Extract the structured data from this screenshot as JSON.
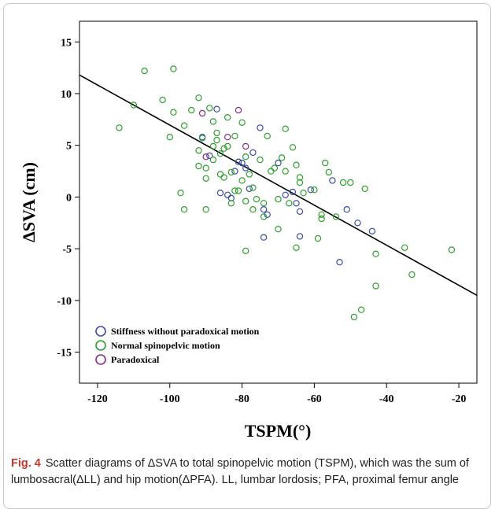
{
  "figure": {
    "caption_label": "Fig. 4",
    "caption_text": "Scatter diagrams of ΔSVA to total spinopelvic motion (TSPM), which was the sum of lumbosacral(ΔLL) and hip motion(ΔPFA). LL, lumbar lordosis; PFA, proximal femur angle"
  },
  "chart_data": {
    "type": "scatter",
    "xlabel": "TSPM(°)",
    "ylabel": "ΔSVA (cm)",
    "xlim": [
      -125,
      -15
    ],
    "ylim": [
      -18,
      17
    ],
    "x_ticks": [
      -120,
      -100,
      -80,
      -60,
      -40,
      -20
    ],
    "y_ticks": [
      15,
      10,
      5,
      0,
      -5,
      -10,
      -15
    ],
    "grid": false,
    "legend_position": "bottom-left",
    "fit_line": {
      "x": [
        -125,
        -15
      ],
      "y": [
        11.8,
        -9.5
      ]
    },
    "series": [
      {
        "name": "Stiffness without paradoxical motion",
        "color": "#3a4aa8",
        "points": [
          [
            -91,
            5.8
          ],
          [
            -89,
            4.0
          ],
          [
            -87,
            8.5
          ],
          [
            -86,
            0.4
          ],
          [
            -84,
            0.2
          ],
          [
            -83,
            -0.1
          ],
          [
            -82,
            2.5
          ],
          [
            -81,
            3.4
          ],
          [
            -80,
            3.3
          ],
          [
            -79,
            2.8
          ],
          [
            -78,
            0.8
          ],
          [
            -77,
            4.3
          ],
          [
            -75,
            6.7
          ],
          [
            -74,
            -1.2
          ],
          [
            -74,
            -3.9
          ],
          [
            -73,
            -1.7
          ],
          [
            -70,
            3.3
          ],
          [
            -68,
            0.2
          ],
          [
            -66,
            0.5
          ],
          [
            -65,
            -0.6
          ],
          [
            -64,
            -1.4
          ],
          [
            -64,
            -3.8
          ],
          [
            -61,
            0.7
          ],
          [
            -55,
            1.6
          ],
          [
            -53,
            -6.3
          ],
          [
            -51,
            -1.2
          ],
          [
            -48,
            -2.5
          ],
          [
            -44,
            -3.3
          ]
        ]
      },
      {
        "name": "Normal spinopelvic motion",
        "color": "#2ea02e",
        "points": [
          [
            -114,
            6.7
          ],
          [
            -110,
            8.9
          ],
          [
            -107,
            12.2
          ],
          [
            -102,
            9.4
          ],
          [
            -100,
            5.8
          ],
          [
            -99,
            12.4
          ],
          [
            -99,
            8.2
          ],
          [
            -97,
            0.4
          ],
          [
            -96,
            6.9
          ],
          [
            -94,
            8.4
          ],
          [
            -92,
            9.6
          ],
          [
            -92,
            4.5
          ],
          [
            -92,
            3.0
          ],
          [
            -91,
            5.7
          ],
          [
            -90,
            2.8
          ],
          [
            -90,
            1.8
          ],
          [
            -89,
            8.6
          ],
          [
            -88,
            7.3
          ],
          [
            -88,
            4.9
          ],
          [
            -88,
            3.6
          ],
          [
            -87,
            6.2
          ],
          [
            -87,
            5.5
          ],
          [
            -86,
            4.2
          ],
          [
            -86,
            2.2
          ],
          [
            -85,
            4.7
          ],
          [
            -85,
            1.9
          ],
          [
            -84,
            7.7
          ],
          [
            -84,
            4.9
          ],
          [
            -83,
            -0.6
          ],
          [
            -83,
            2.4
          ],
          [
            -82,
            5.9
          ],
          [
            -81,
            0.6
          ],
          [
            -80,
            7.2
          ],
          [
            -80,
            1.6
          ],
          [
            -79,
            -5.2
          ],
          [
            -79,
            3.9
          ],
          [
            -78,
            2.2
          ],
          [
            -77,
            0.9
          ],
          [
            -77,
            -1.2
          ],
          [
            -76,
            -0.2
          ],
          [
            -75,
            3.6
          ],
          [
            -74,
            -0.6
          ],
          [
            -74,
            -1.9
          ],
          [
            -73,
            5.9
          ],
          [
            -72,
            2.5
          ],
          [
            -71,
            2.8
          ],
          [
            -70,
            -0.2
          ],
          [
            -70,
            -3.1
          ],
          [
            -69,
            3.8
          ],
          [
            -68,
            6.6
          ],
          [
            -68,
            2.5
          ],
          [
            -67,
            -0.6
          ],
          [
            -66,
            4.8
          ],
          [
            -65,
            3.1
          ],
          [
            -65,
            -4.9
          ],
          [
            -64,
            1.9
          ],
          [
            -64,
            1.4
          ],
          [
            -63,
            0.4
          ],
          [
            -60,
            0.7
          ],
          [
            -59,
            -4.0
          ],
          [
            -58,
            -1.7
          ],
          [
            -58,
            -2.1
          ],
          [
            -57,
            3.3
          ],
          [
            -56,
            2.4
          ],
          [
            -54,
            -1.9
          ],
          [
            -52,
            1.4
          ],
          [
            -50,
            1.4
          ],
          [
            -49,
            -11.6
          ],
          [
            -47,
            -10.9
          ],
          [
            -46,
            0.8
          ],
          [
            -43,
            -5.5
          ],
          [
            -43,
            -8.6
          ],
          [
            -35,
            -4.9
          ],
          [
            -33,
            -7.5
          ],
          [
            -22,
            -5.1
          ],
          [
            -90,
            -1.2
          ],
          [
            -82,
            0.6
          ],
          [
            -79,
            -0.4
          ],
          [
            -96,
            -1.2
          ]
        ]
      },
      {
        "name": "Paradoxical",
        "color": "#8a2d8a",
        "points": [
          [
            -91,
            8.1
          ],
          [
            -90,
            3.9
          ],
          [
            -84,
            5.8
          ],
          [
            -81,
            8.4
          ],
          [
            -79,
            4.9
          ]
        ]
      }
    ]
  }
}
